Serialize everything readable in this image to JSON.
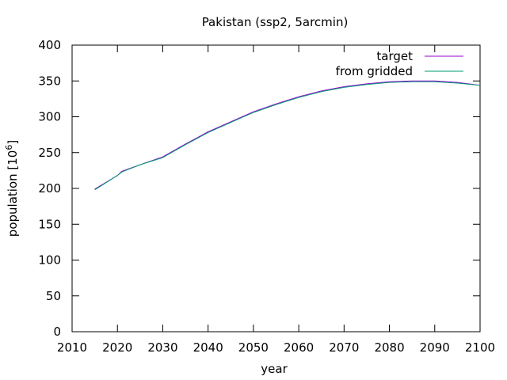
{
  "chart_data": {
    "type": "line",
    "title": "Pakistan (ssp2, 5arcmin)",
    "xlabel": "year",
    "ylabel": "population [10",
    "ylabel_sup": "6",
    "ylabel_close": "]",
    "xlim": [
      2010,
      2100
    ],
    "ylim": [
      0,
      400
    ],
    "xticks": [
      2010,
      2020,
      2030,
      2040,
      2050,
      2060,
      2070,
      2080,
      2090,
      2100
    ],
    "yticks": [
      0,
      50,
      100,
      150,
      200,
      250,
      300,
      350,
      400
    ],
    "grid": false,
    "legend_position": "top-right",
    "series": [
      {
        "name": "target",
        "color": "#9400d3",
        "x": [
          2015,
          2020,
          2021,
          2025,
          2030,
          2035,
          2040,
          2045,
          2050,
          2055,
          2060,
          2065,
          2070,
          2075,
          2080,
          2085,
          2090,
          2095,
          2100
        ],
        "y": [
          199,
          218,
          224,
          233,
          244,
          262,
          279,
          293,
          307,
          318,
          328,
          336,
          342,
          346,
          349,
          350,
          350,
          348,
          344
        ]
      },
      {
        "name": "from gridded",
        "color": "#009e73",
        "x": [
          2015,
          2020,
          2021,
          2025,
          2030,
          2035,
          2040,
          2045,
          2050,
          2055,
          2060,
          2065,
          2070,
          2075,
          2080,
          2085,
          2090,
          2095,
          2100
        ],
        "y": [
          198,
          218,
          223,
          233,
          243,
          261,
          278,
          292,
          306,
          317,
          327,
          335,
          341,
          345,
          348,
          349,
          349,
          347,
          344
        ]
      }
    ]
  }
}
